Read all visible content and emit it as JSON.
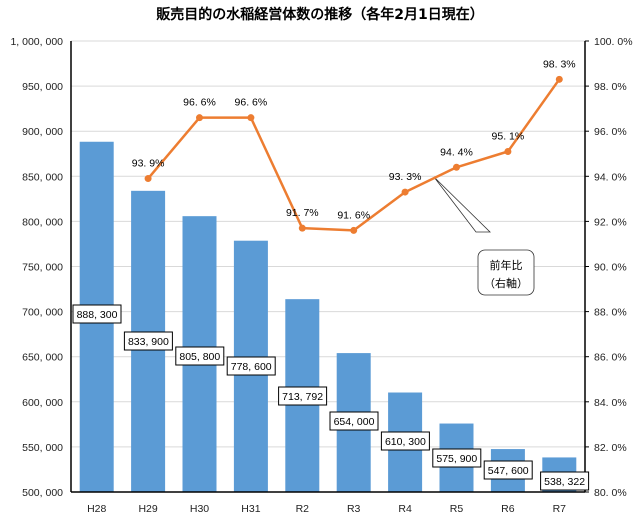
{
  "chart_data": {
    "type": "bar+line",
    "title": "販売目的の水稲経営体数の推移（各年2月1日現在）",
    "categories": [
      "H28",
      "H29",
      "H30",
      "H31",
      "R2",
      "R3",
      "R4",
      "R5",
      "R6",
      "R7"
    ],
    "series": [
      {
        "name": "販売目的の水稲経営体数",
        "type": "bar",
        "axis": "left",
        "color": "#5B9BD5",
        "values": [
          888300,
          833900,
          805800,
          778600,
          713792,
          654000,
          610300,
          575900,
          547600,
          538322
        ],
        "labels": [
          "888, 300",
          "833, 900",
          "805, 800",
          "778, 600",
          "713, 792",
          "654, 000",
          "610, 300",
          "575, 900",
          "547, 600",
          "538, 322"
        ]
      },
      {
        "name": "前年比",
        "type": "line",
        "axis": "right",
        "color": "#ED7D31",
        "values": [
          null,
          93.9,
          96.6,
          96.6,
          91.7,
          91.6,
          93.3,
          94.4,
          95.1,
          98.3
        ],
        "labels": [
          "",
          "93. 9%",
          "96. 6%",
          "96. 6%",
          "91. 7%",
          "91. 6%",
          "93. 3%",
          "94. 4%",
          "95. 1%",
          "98. 3%"
        ]
      }
    ],
    "left_axis": {
      "ylim": [
        500000,
        1000000
      ],
      "ticks": [
        500000,
        550000,
        600000,
        650000,
        700000,
        750000,
        800000,
        850000,
        900000,
        950000,
        1000000
      ],
      "tick_labels": [
        "500, 000",
        "550, 000",
        "600, 000",
        "650, 000",
        "700, 000",
        "750, 000",
        "800, 000",
        "850, 000",
        "900, 000",
        "950, 000",
        "1, 000, 000"
      ]
    },
    "right_axis": {
      "ylim": [
        80,
        100
      ],
      "ticks": [
        80,
        82,
        84,
        86,
        88,
        90,
        92,
        94,
        96,
        98,
        100
      ],
      "tick_labels": [
        "80. 0%",
        "82. 0%",
        "84. 0%",
        "86. 0%",
        "88. 0%",
        "90. 0%",
        "92. 0%",
        "94. 0%",
        "96. 0%",
        "98. 0%",
        "100. 0%"
      ]
    },
    "callout": {
      "line1": "前年比",
      "line2": "（右軸）"
    },
    "grid": true,
    "legend": "none"
  }
}
